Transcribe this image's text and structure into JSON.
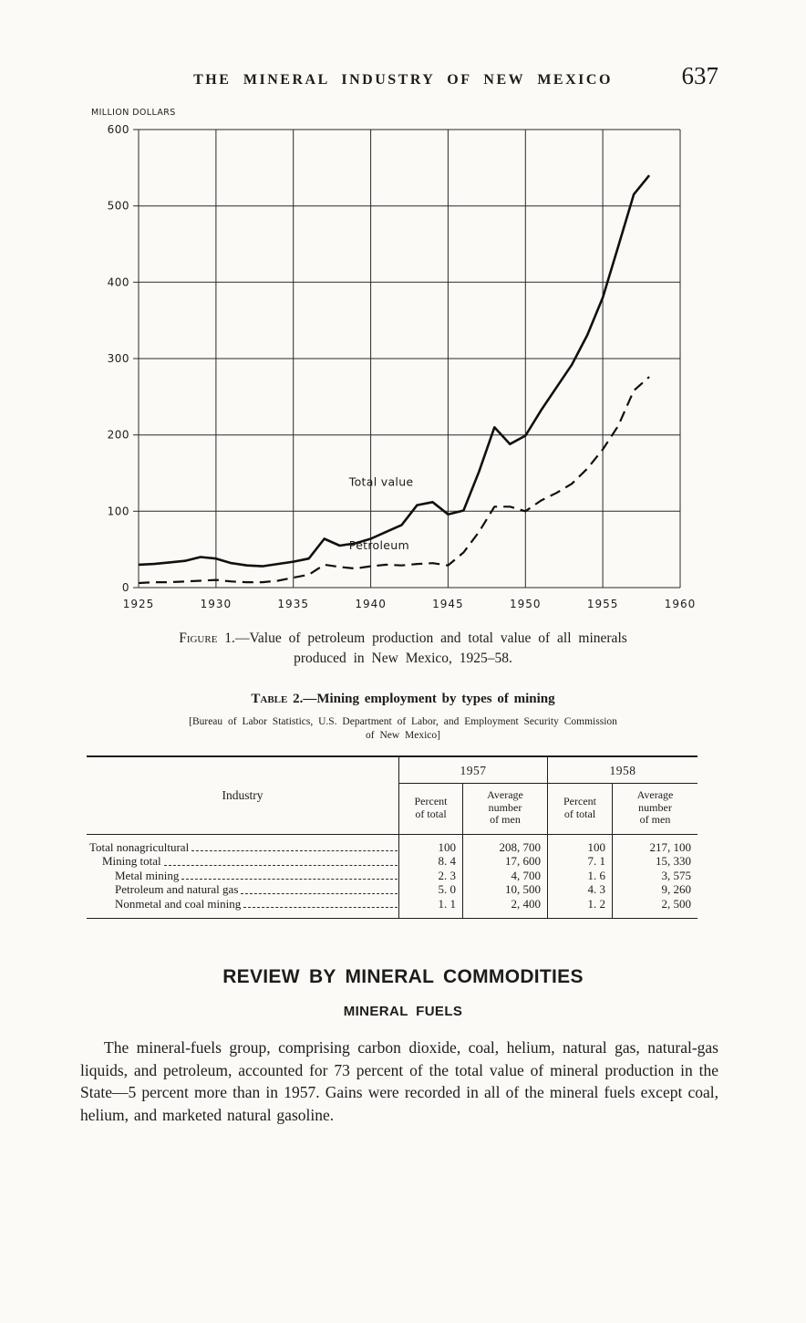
{
  "page": {
    "header_title": "THE MINERAL INDUSTRY OF NEW MEXICO",
    "page_number": "637"
  },
  "chart_data": {
    "type": "line",
    "title": "",
    "xlabel": "",
    "ylabel": "MILLION DOLLARS",
    "ylim": [
      0,
      600
    ],
    "yticks": [
      0,
      100,
      200,
      300,
      400,
      500,
      600
    ],
    "xlim": [
      1925,
      1960
    ],
    "xticks": [
      1925,
      1930,
      1935,
      1940,
      1945,
      1950,
      1955,
      1960
    ],
    "grid": true,
    "legend_position": "inline-labels",
    "x": [
      1925,
      1926,
      1927,
      1928,
      1929,
      1930,
      1931,
      1932,
      1933,
      1934,
      1935,
      1936,
      1937,
      1938,
      1939,
      1940,
      1941,
      1942,
      1943,
      1944,
      1945,
      1946,
      1947,
      1948,
      1949,
      1950,
      1951,
      1952,
      1953,
      1954,
      1955,
      1956,
      1957,
      1958
    ],
    "series": [
      {
        "name": "Total value",
        "style": "solid",
        "values": [
          30,
          31,
          33,
          35,
          40,
          38,
          32,
          29,
          28,
          31,
          34,
          38,
          64,
          55,
          58,
          64,
          73,
          82,
          108,
          112,
          96,
          101,
          152,
          210,
          188,
          199,
          232,
          262,
          292,
          331,
          380,
          447,
          515,
          540
        ]
      },
      {
        "name": "Petroleum",
        "style": "dashed",
        "values": [
          6,
          7,
          7,
          8,
          9,
          10,
          8,
          7,
          7,
          9,
          13,
          17,
          30,
          27,
          25,
          28,
          30,
          29,
          31,
          32,
          29,
          46,
          73,
          106,
          106,
          100,
          114,
          124,
          136,
          156,
          181,
          212,
          258,
          276
        ]
      }
    ],
    "annotations": [
      {
        "text": "Total value",
        "x": 1938.6,
        "y": 133
      },
      {
        "text": "Petroleum",
        "x": 1938.6,
        "y": 50
      }
    ]
  },
  "figure": {
    "caption": {
      "prefix": "Figure 1.",
      "line1_rest": "—Value of petroleum production and total value of all minerals",
      "line2": "produced in New Mexico, 1925–58."
    }
  },
  "table": {
    "title_prefix": "Table 2.",
    "title_rest": "—Mining employment by types of mining",
    "source_line1": "[Bureau of Labor Statistics, U.S. Department of Labor, and Employment Security Commission",
    "source_line2": "of New Mexico]",
    "col_industry": "Industry",
    "year_groups": [
      "1957",
      "1958"
    ],
    "subheaders": [
      "Percent\nof total",
      "Average\nnumber\nof men",
      "Percent\nof total",
      "Average\nnumber\nof men"
    ],
    "rows": [
      {
        "industry": "Total nonagricultural",
        "values": [
          "100",
          "208, 700",
          "100",
          "217, 100"
        ]
      },
      {
        "industry": "Mining total",
        "values": [
          "8. 4",
          "17, 600",
          "7. 1",
          "15, 330"
        ]
      },
      {
        "industry": "Metal mining",
        "values": [
          "2. 3",
          "4, 700",
          "1. 6",
          "3, 575"
        ]
      },
      {
        "industry": "Petroleum and natural gas",
        "values": [
          "5. 0",
          "10, 500",
          "4. 3",
          "9, 260"
        ]
      },
      {
        "industry": "Nonmetal and coal mining",
        "values": [
          "1. 1",
          "2, 400",
          "1. 2",
          "2, 500"
        ]
      }
    ]
  },
  "sections": {
    "review_heading": "REVIEW BY MINERAL COMMODITIES",
    "fuels_heading": "MINERAL FUELS",
    "paragraph": "The mineral-fuels group, comprising carbon dioxide, coal, helium, natural gas, natural-gas liquids, and petroleum, accounted for 73 percent of the total value of mineral production in the State—5 percent more than in 1957.  Gains were recorded in all of the mineral fuels except coal, helium, and marketed natural gasoline."
  }
}
